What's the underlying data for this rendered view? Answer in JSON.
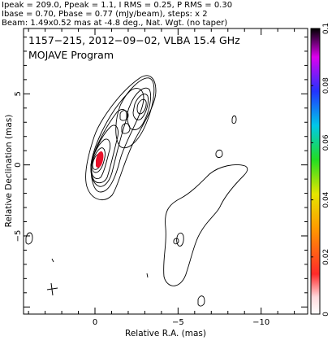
{
  "header_lines": [
    "Ipeak = 209.0, Ppeak = 1.1, I RMS = 0.25, P RMS = 0.30",
    "Ibase = 0.70, Pbase = 0.77 (mJy/beam), steps: x 2",
    "Beam: 1.49x0.52 mas at -4.8 deg., Nat. Wgt. (no taper)"
  ],
  "chart_data": {
    "type": "contour",
    "title": "1157−215, 2012−09−02, VLBA 15.4 GHz",
    "subtitle": "MOJAVE Program",
    "xlabel": "Relative R.A. (mas)",
    "ylabel": "Relative Declination (mas)",
    "xlim": [
      4.3,
      -12.8
    ],
    "ylim": [
      -10.5,
      9.6
    ],
    "x_ticks": [
      0,
      -5,
      -10
    ],
    "y_ticks": [
      5,
      0,
      -5
    ],
    "x_tick_labels": [
      "0",
      "−5",
      "−10"
    ],
    "y_tick_labels": [
      "5",
      "0",
      "−5"
    ],
    "ipeak_mJy_per_beam": 209.0,
    "base_contour_mJy_per_beam": 0.7,
    "contour_step_factor": 2,
    "colorbar": {
      "min": 0,
      "max": 0.1,
      "ticks": [
        0,
        0.02,
        0.04,
        0.06,
        0.08,
        0.1
      ],
      "tick_labels": [
        "0",
        "0.02",
        "0.04",
        "0.06",
        "0.08",
        "0.1"
      ]
    },
    "polarization_peak": {
      "x": -0.35,
      "y": 0.45
    },
    "core": {
      "x": 0.0,
      "y": 0.0
    },
    "jet_knot": {
      "x": -2.8,
      "y": 3.1
    },
    "beam": {
      "major_mas": 1.49,
      "minor_mas": 0.52,
      "pa_deg": -4.8,
      "x": 2.2,
      "y": -7.9
    }
  }
}
